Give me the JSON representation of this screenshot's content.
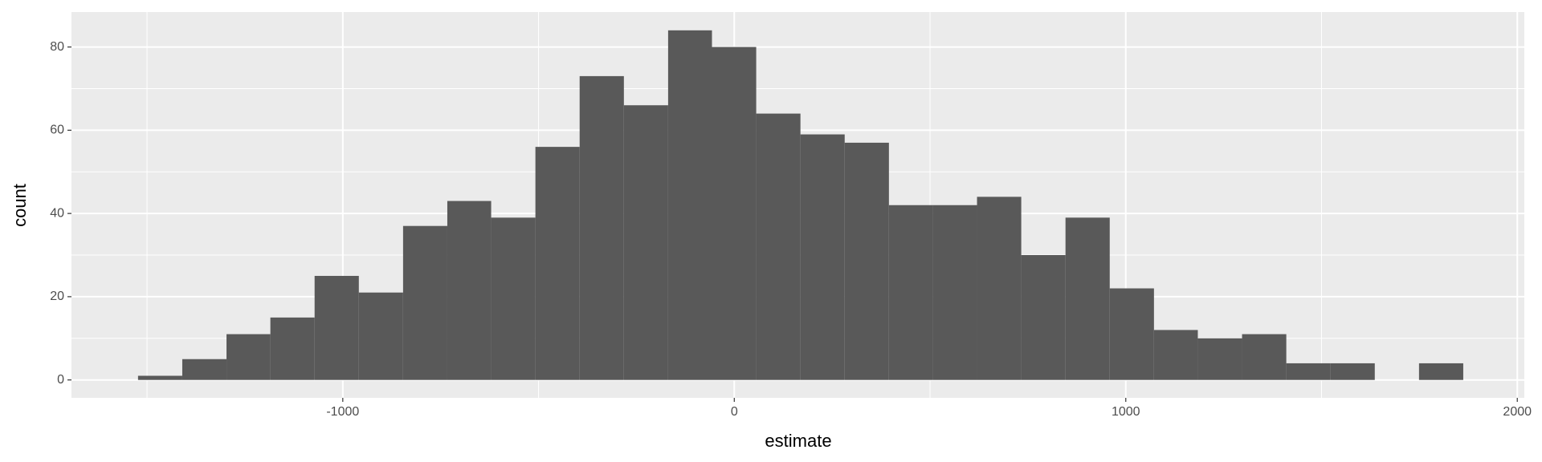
{
  "chart_data": {
    "type": "histogram",
    "x_label": "estimate",
    "y_label": "count",
    "bins": [
      -1523,
      -1410,
      -1297,
      -1185,
      -1072,
      -959,
      -846,
      -733,
      -621,
      -508,
      -395,
      -282,
      -169,
      -57,
      56,
      169,
      282,
      395,
      508,
      620,
      733,
      846,
      959,
      1072,
      1184,
      1297,
      1410,
      1523,
      1636,
      1749,
      1862
    ],
    "values": [
      1,
      5,
      11,
      15,
      25,
      21,
      37,
      43,
      39,
      56,
      73,
      66,
      84,
      80,
      64,
      59,
      57,
      42,
      42,
      44,
      30,
      39,
      22,
      12,
      10,
      11,
      4,
      4,
      0,
      4
    ],
    "color": "#595959",
    "xlim": [
      -1693,
      2018
    ],
    "ylim": [
      -4.3,
      88.4
    ],
    "xticks": [
      {
        "value": -1000,
        "label": "-1000"
      },
      0,
      1000,
      2000
    ],
    "yticks": [
      0,
      20,
      40,
      60,
      80
    ],
    "minor_xticks": [
      -1500,
      -500,
      500,
      1500
    ],
    "minor_yticks": [
      10,
      30,
      50,
      70
    ],
    "grid": true,
    "panel_color": "#ebebeb"
  }
}
